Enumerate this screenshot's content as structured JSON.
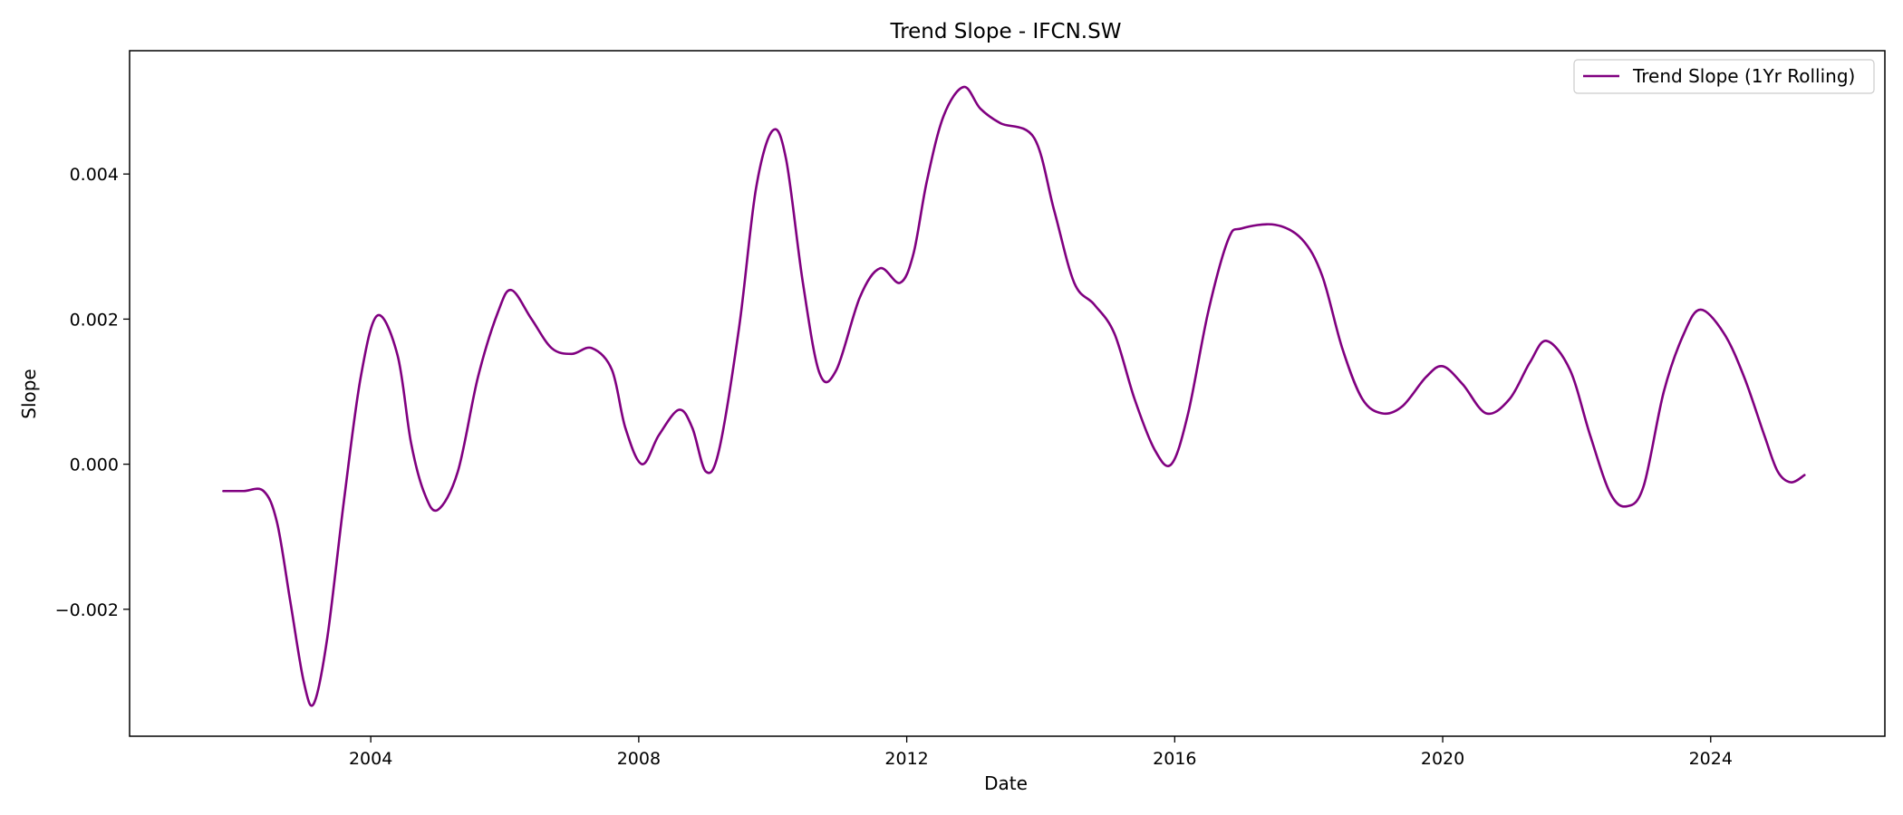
{
  "chart_data": {
    "type": "line",
    "title": "Trend Slope - IFCN.SW",
    "xlabel": "Date",
    "ylabel": "Slope",
    "xlim": [
      2000.4,
      2026.6
    ],
    "ylim": [
      -0.00375,
      0.0057
    ],
    "x_ticks": [
      2004,
      2008,
      2012,
      2016,
      2020,
      2024
    ],
    "y_ticks": [
      -0.002,
      0.0,
      0.002,
      0.004
    ],
    "y_tick_labels": [
      "−0.002",
      "0.000",
      "0.002",
      "0.004"
    ],
    "grid": false,
    "legend": "top-right",
    "series": [
      {
        "name": "Trend Slope (1Yr Rolling)",
        "color": "#800080",
        "x": [
          2001.8,
          2002.1,
          2002.4,
          2002.6,
          2002.8,
          2003.0,
          2003.15,
          2003.35,
          2003.6,
          2003.85,
          2004.1,
          2004.4,
          2004.6,
          2004.8,
          2005.0,
          2005.3,
          2005.6,
          2005.9,
          2006.1,
          2006.4,
          2006.7,
          2007.0,
          2007.3,
          2007.6,
          2007.8,
          2008.05,
          2008.3,
          2008.6,
          2008.8,
          2009.0,
          2009.2,
          2009.5,
          2009.75,
          2010.0,
          2010.2,
          2010.45,
          2010.7,
          2010.95,
          2011.3,
          2011.6,
          2011.9,
          2012.1,
          2012.3,
          2012.55,
          2012.85,
          2013.1,
          2013.4,
          2013.9,
          2014.2,
          2014.5,
          2014.8,
          2015.1,
          2015.4,
          2015.7,
          2015.95,
          2016.2,
          2016.5,
          2016.8,
          2017.0,
          2017.5,
          2017.9,
          2018.2,
          2018.5,
          2018.8,
          2019.1,
          2019.4,
          2019.75,
          2020.0,
          2020.3,
          2020.65,
          2021.0,
          2021.3,
          2021.55,
          2021.9,
          2022.2,
          2022.5,
          2022.75,
          2023.0,
          2023.3,
          2023.6,
          2023.85,
          2024.2,
          2024.5,
          2024.8,
          2025.0,
          2025.2,
          2025.4
        ],
        "y": [
          -0.00037,
          -0.00037,
          -0.00037,
          -0.0008,
          -0.0019,
          -0.003,
          -0.0033,
          -0.0024,
          -0.0005,
          0.0012,
          0.00205,
          0.0015,
          0.0003,
          -0.0004,
          -0.00063,
          -0.0001,
          0.0012,
          0.0021,
          0.0024,
          0.002,
          0.0016,
          0.00152,
          0.0016,
          0.0013,
          0.0005,
          0.0,
          0.0004,
          0.00075,
          0.0005,
          -0.0001,
          0.0002,
          0.0019,
          0.0038,
          0.0046,
          0.0042,
          0.0025,
          0.00125,
          0.0013,
          0.0023,
          0.0027,
          0.0025,
          0.0029,
          0.0039,
          0.0048,
          0.0052,
          0.0049,
          0.0047,
          0.0045,
          0.0035,
          0.0025,
          0.0022,
          0.0018,
          0.0009,
          0.0002,
          0.0,
          0.0007,
          0.0021,
          0.0031,
          0.00325,
          0.0033,
          0.0031,
          0.0026,
          0.0016,
          0.0009,
          0.0007,
          0.0008,
          0.0012,
          0.00135,
          0.0011,
          0.0007,
          0.0009,
          0.0014,
          0.0017,
          0.0013,
          0.0004,
          -0.0004,
          -0.00058,
          -0.0003,
          0.001,
          0.0018,
          0.00213,
          0.0018,
          0.0012,
          0.0004,
          -0.0001,
          -0.00025,
          -0.00015
        ]
      }
    ]
  }
}
